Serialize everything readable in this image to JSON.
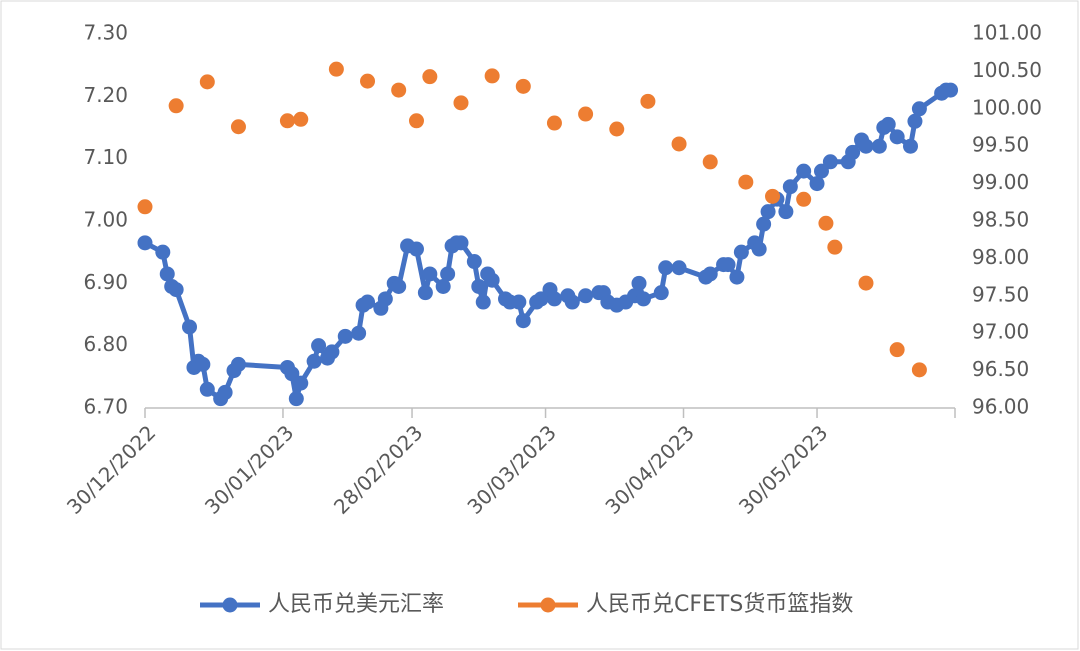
{
  "chart_data": {
    "type": "line",
    "xlim": [
      "30/12/2022",
      "30/06/2023"
    ],
    "xticks": [
      "30/12/2022",
      "30/01/2023",
      "28/02/2023",
      "30/03/2023",
      "30/04/2023",
      "30/05/2023"
    ],
    "ylim": [
      6.7,
      7.3
    ],
    "yticks": [
      {
        "value": 6.7,
        "label": "6.70"
      },
      {
        "value": 6.8,
        "label": "6.80"
      },
      {
        "value": 6.9,
        "label": "6.90"
      },
      {
        "value": 7.0,
        "label": "7.00"
      },
      {
        "value": 7.1,
        "label": "7.10"
      },
      {
        "value": 7.2,
        "label": "7.20"
      },
      {
        "value": 7.3,
        "label": "7.30"
      }
    ],
    "y2lim": [
      96,
      101
    ],
    "y2ticks": [
      {
        "value": 96,
        "label": "96.00"
      },
      {
        "value": 96.5,
        "label": "96.50"
      },
      {
        "value": 97,
        "label": "97.00"
      },
      {
        "value": 97.5,
        "label": "97.50"
      },
      {
        "value": 98,
        "label": "98.00"
      },
      {
        "value": 98.5,
        "label": "98.50"
      },
      {
        "value": 99,
        "label": "99.00"
      },
      {
        "value": 99.5,
        "label": "99.50"
      },
      {
        "value": 100,
        "label": "100.00"
      },
      {
        "value": 100.5,
        "label": "100.50"
      },
      {
        "value": 101,
        "label": "101.00"
      }
    ],
    "legend": "bottom",
    "series": [
      {
        "name": "人民币兑美元汇率",
        "color": "#4472c4",
        "line": true,
        "x": [
          "30/12/2022",
          "03/01/2023",
          "04/01/2023",
          "05/01/2023",
          "06/01/2023",
          "09/01/2023",
          "10/01/2023",
          "11/01/2023",
          "12/01/2023",
          "13/01/2023",
          "16/01/2023",
          "17/01/2023",
          "19/01/2023",
          "20/01/2023",
          "31/01/2023",
          "01/02/2023",
          "02/02/2023",
          "03/02/2023",
          "06/02/2023",
          "07/02/2023",
          "09/02/2023",
          "10/02/2023",
          "13/02/2023",
          "16/02/2023",
          "17/02/2023",
          "18/02/2023",
          "21/02/2023",
          "22/02/2023",
          "24/02/2023",
          "25/02/2023",
          "27/02/2023",
          "01/03/2023",
          "03/03/2023",
          "04/03/2023",
          "07/03/2023",
          "08/03/2023",
          "09/03/2023",
          "10/03/2023",
          "11/03/2023",
          "14/03/2023",
          "15/03/2023",
          "16/03/2023",
          "17/03/2023",
          "18/03/2023",
          "21/03/2023",
          "22/03/2023",
          "24/03/2023",
          "25/03/2023",
          "28/03/2023",
          "29/03/2023",
          "31/03/2023",
          "01/04/2023",
          "04/04/2023",
          "05/04/2023",
          "08/04/2023",
          "11/04/2023",
          "12/04/2023",
          "13/04/2023",
          "15/04/2023",
          "17/04/2023",
          "19/04/2023",
          "20/04/2023",
          "21/04/2023",
          "25/04/2023",
          "26/04/2023",
          "29/04/2023",
          "05/05/2023",
          "06/05/2023",
          "09/05/2023",
          "10/05/2023",
          "12/05/2023",
          "13/05/2023",
          "16/05/2023",
          "17/05/2023",
          "18/05/2023",
          "19/05/2023",
          "21/05/2023",
          "23/05/2023",
          "24/05/2023",
          "27/05/2023",
          "30/05/2023",
          "31/05/2023",
          "02/06/2023",
          "06/06/2023",
          "07/06/2023",
          "09/06/2023",
          "10/06/2023",
          "13/06/2023",
          "14/06/2023",
          "15/06/2023",
          "17/06/2023",
          "20/06/2023",
          "21/06/2023",
          "22/06/2023",
          "27/06/2023",
          "28/06/2023",
          "29/06/2023"
        ],
        "values": [
          6.965,
          6.95,
          6.915,
          6.895,
          6.89,
          6.83,
          6.765,
          6.775,
          6.77,
          6.73,
          6.715,
          6.725,
          6.76,
          6.77,
          6.765,
          6.755,
          6.715,
          6.74,
          6.775,
          6.8,
          6.78,
          6.79,
          6.815,
          6.82,
          6.865,
          6.87,
          6.86,
          6.875,
          6.9,
          6.895,
          6.96,
          6.955,
          6.885,
          6.915,
          6.895,
          6.915,
          6.96,
          6.965,
          6.965,
          6.935,
          6.895,
          6.87,
          6.915,
          6.905,
          6.875,
          6.87,
          6.87,
          6.84,
          6.87,
          6.875,
          6.89,
          6.875,
          6.88,
          6.87,
          6.88,
          6.885,
          6.885,
          6.87,
          6.865,
          6.87,
          6.88,
          6.9,
          6.875,
          6.885,
          6.925,
          6.925,
          6.91,
          6.915,
          6.93,
          6.93,
          6.91,
          6.95,
          6.965,
          6.955,
          6.995,
          7.015,
          7.035,
          7.015,
          7.055,
          7.08,
          7.06,
          7.08,
          7.095,
          7.095,
          7.11,
          7.13,
          7.12,
          7.12,
          7.15,
          7.155,
          7.135,
          7.12,
          7.16,
          7.18,
          7.205,
          7.21,
          7.21
        ]
      },
      {
        "name": "人民币兑CFETS货币篮指数",
        "color": "#ed7d31",
        "line": false,
        "axis": "y2",
        "x": [
          "30/12/2022",
          "06/01/2023",
          "13/01/2023",
          "20/01/2023",
          "31/01/2023",
          "03/02/2023",
          "11/02/2023",
          "18/02/2023",
          "25/02/2023",
          "01/03/2023",
          "04/03/2023",
          "11/03/2023",
          "18/03/2023",
          "25/03/2023",
          "01/04/2023",
          "08/04/2023",
          "15/04/2023",
          "22/04/2023",
          "29/04/2023",
          "06/05/2023",
          "14/05/2023",
          "20/05/2023",
          "27/05/2023",
          "01/06/2023",
          "03/06/2023",
          "10/06/2023",
          "17/06/2023",
          "22/06/2023"
        ],
        "values": [
          98.69,
          100.04,
          100.36,
          99.76,
          99.84,
          99.86,
          100.53,
          100.37,
          100.25,
          99.84,
          100.43,
          100.08,
          100.44,
          100.3,
          99.81,
          99.93,
          99.73,
          100.1,
          99.53,
          99.29,
          99.02,
          98.83,
          98.79,
          98.47,
          98.15,
          97.67,
          96.78,
          96.51
        ]
      }
    ]
  }
}
